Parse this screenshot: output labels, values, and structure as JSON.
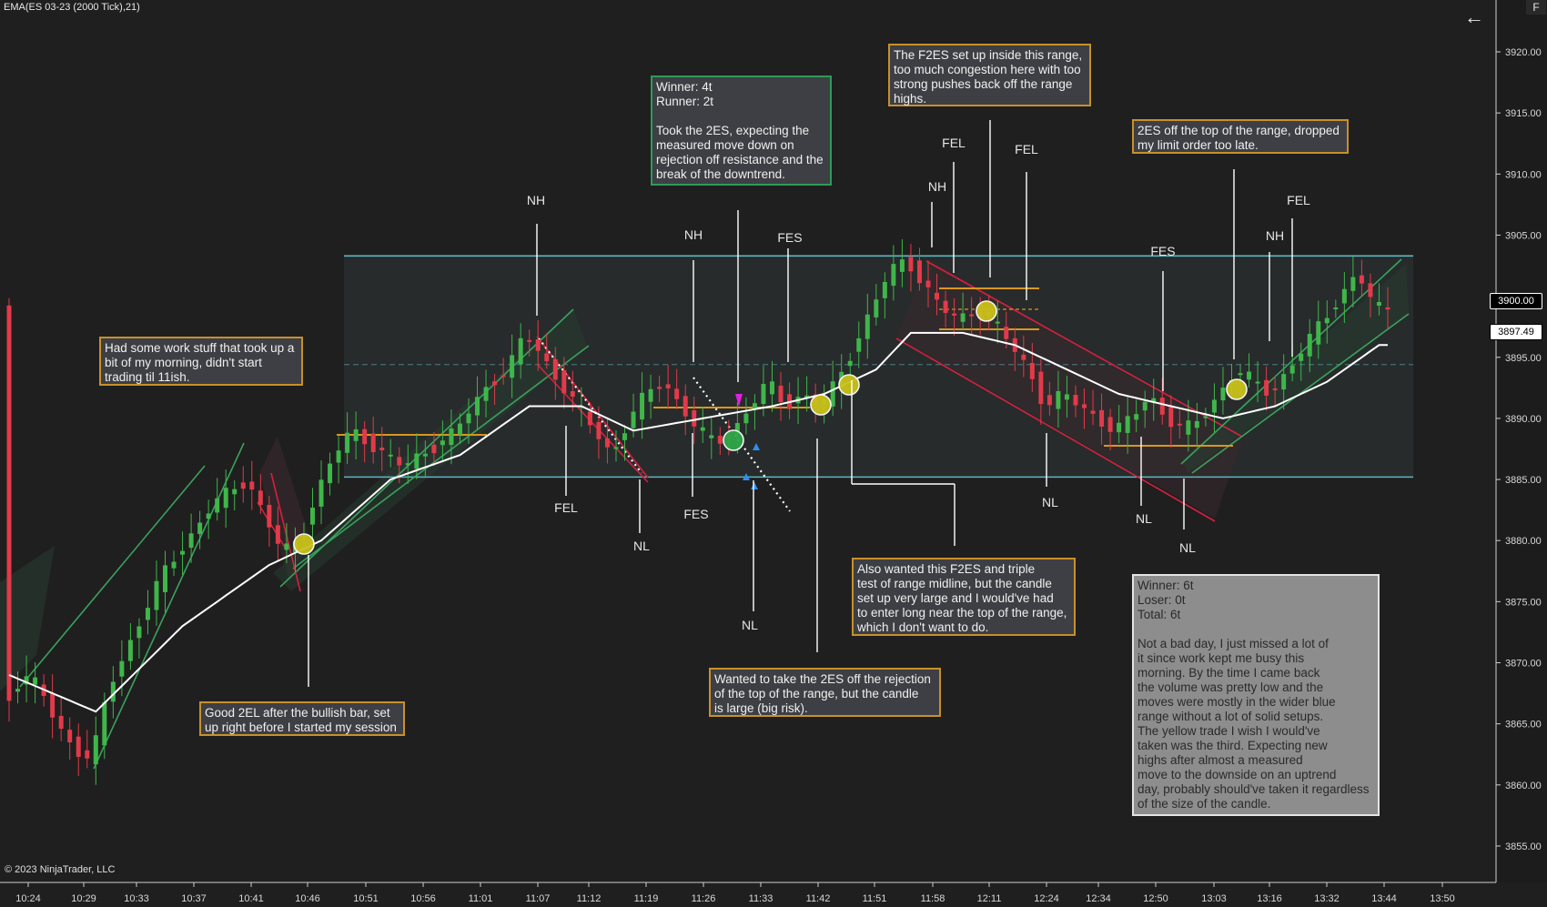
{
  "indicator_title": "EMA(ES 03-23 (2000 Tick),21)",
  "copyright": "© 2023 NinjaTrader, LLC",
  "corner_button": "F",
  "icons": {
    "back": "back-arrow-icon"
  },
  "price_badges": {
    "primary": {
      "label": "3900.00",
      "value": 3900.0,
      "bg": "#000000",
      "fg": "#ffffff",
      "border": "#ffffff"
    },
    "last": {
      "label": "3897.49",
      "value": 3897.49,
      "bg": "#ffffff",
      "fg": "#000000",
      "border": "#000000"
    }
  },
  "colors": {
    "background": "#1f1f1f",
    "up_candle": "#3fb64a",
    "down_candle": "#e23a4a",
    "ema": "#ffffff",
    "range_line": "#5fb6c4",
    "green_channel": "#3aa35c",
    "red_channel": "#d6203f",
    "orange_level": "#d9971f"
  },
  "chart_data": {
    "type": "candlestick",
    "series": [
      {
        "name": "EMA(21)",
        "type": "line"
      }
    ],
    "x_ticks": [
      "10:24",
      "10:29",
      "10:33",
      "10:37",
      "10:41",
      "10:46",
      "10:51",
      "10:56",
      "11:01",
      "11:07",
      "11:12",
      "11:19",
      "11:26",
      "11:33",
      "11:42",
      "11:51",
      "11:58",
      "12:11",
      "12:24",
      "12:34",
      "12:50",
      "13:03",
      "13:16",
      "13:32",
      "13:44",
      "13:50"
    ],
    "y_ticks": [
      "3920.00",
      "3915.00",
      "3910.00",
      "3905.00",
      "3900.00",
      "3895.00",
      "3890.00",
      "3885.00",
      "3880.00",
      "3875.00",
      "3870.00",
      "3865.00",
      "3860.00",
      "3855.00"
    ],
    "ylim": [
      3853.0,
      3923.5
    ],
    "range": {
      "top": 3903.3,
      "mid": 3894.4,
      "bottom": 3885.2
    },
    "close_path": [
      [
        0,
        3866.5
      ],
      [
        2,
        3869
      ],
      [
        4,
        3868
      ],
      [
        6,
        3865
      ],
      [
        8,
        3863
      ],
      [
        10,
        3862
      ],
      [
        12,
        3868
      ],
      [
        14,
        3871
      ],
      [
        16,
        3874
      ],
      [
        18,
        3877
      ],
      [
        20,
        3879
      ],
      [
        22,
        3881
      ],
      [
        24,
        3883
      ],
      [
        26,
        3884
      ],
      [
        28,
        3885
      ],
      [
        30,
        3882
      ],
      [
        32,
        3879
      ],
      [
        34,
        3880
      ],
      [
        36,
        3884
      ],
      [
        38,
        3887
      ],
      [
        40,
        3889
      ],
      [
        42,
        3888
      ],
      [
        44,
        3887
      ],
      [
        46,
        3886
      ],
      [
        48,
        3887
      ],
      [
        50,
        3888
      ],
      [
        52,
        3889
      ],
      [
        54,
        3891
      ],
      [
        56,
        3893
      ],
      [
        58,
        3894
      ],
      [
        60,
        3897
      ],
      [
        62,
        3895
      ],
      [
        64,
        3893
      ],
      [
        66,
        3891
      ],
      [
        68,
        3889
      ],
      [
        70,
        3887
      ],
      [
        72,
        3890
      ],
      [
        74,
        3892
      ],
      [
        76,
        3893
      ],
      [
        78,
        3891
      ],
      [
        80,
        3889
      ],
      [
        82,
        3888
      ],
      [
        84,
        3889
      ],
      [
        86,
        3891
      ],
      [
        88,
        3893
      ],
      [
        90,
        3891
      ],
      [
        92,
        3892
      ],
      [
        94,
        3891
      ],
      [
        96,
        3893
      ],
      [
        98,
        3896
      ],
      [
        100,
        3899
      ],
      [
        102,
        3902
      ],
      [
        104,
        3903
      ],
      [
        106,
        3901
      ],
      [
        108,
        3899
      ],
      [
        110,
        3898
      ],
      [
        112,
        3899
      ],
      [
        114,
        3898
      ],
      [
        116,
        3896
      ],
      [
        118,
        3894
      ],
      [
        120,
        3891
      ],
      [
        122,
        3892
      ],
      [
        124,
        3891
      ],
      [
        126,
        3890
      ],
      [
        128,
        3889
      ],
      [
        130,
        3890
      ],
      [
        132,
        3892
      ],
      [
        134,
        3890
      ],
      [
        136,
        3889
      ],
      [
        138,
        3890
      ],
      [
        140,
        3892
      ],
      [
        142,
        3894
      ],
      [
        144,
        3893
      ],
      [
        146,
        3892
      ],
      [
        148,
        3894
      ],
      [
        150,
        3896
      ],
      [
        152,
        3898
      ],
      [
        154,
        3900
      ],
      [
        156,
        3902
      ],
      [
        158,
        3899
      ]
    ],
    "ema_path": [
      [
        0,
        3869
      ],
      [
        10,
        3866
      ],
      [
        20,
        3873
      ],
      [
        30,
        3878
      ],
      [
        36,
        3880
      ],
      [
        44,
        3885
      ],
      [
        52,
        3887
      ],
      [
        60,
        3891
      ],
      [
        66,
        3891
      ],
      [
        72,
        3889
      ],
      [
        80,
        3890
      ],
      [
        88,
        3891
      ],
      [
        94,
        3892
      ],
      [
        100,
        3894
      ],
      [
        104,
        3897
      ],
      [
        110,
        3897
      ],
      [
        116,
        3896
      ],
      [
        122,
        3894
      ],
      [
        128,
        3892
      ],
      [
        134,
        3891
      ],
      [
        140,
        3890
      ],
      [
        146,
        3891
      ],
      [
        152,
        3893
      ],
      [
        158,
        3896
      ]
    ],
    "labels": [
      {
        "text": "NH",
        "x": 589,
        "y": 225
      },
      {
        "text": "FEL",
        "x": 622,
        "y": 563
      },
      {
        "text": "NL",
        "x": 705,
        "y": 605
      },
      {
        "text": "NH",
        "x": 762,
        "y": 263
      },
      {
        "text": "FES",
        "x": 765,
        "y": 570
      },
      {
        "text": "NL",
        "x": 824,
        "y": 692
      },
      {
        "text": "FES",
        "x": 868,
        "y": 266
      },
      {
        "text": "NH",
        "x": 1030,
        "y": 210
      },
      {
        "text": "FEL",
        "x": 1048,
        "y": 162
      },
      {
        "text": "FEL",
        "x": 1128,
        "y": 169
      },
      {
        "text": "NL",
        "x": 1154,
        "y": 557
      },
      {
        "text": "NL",
        "x": 1257,
        "y": 575
      },
      {
        "text": "FES",
        "x": 1278,
        "y": 281
      },
      {
        "text": "NL",
        "x": 1305,
        "y": 607
      },
      {
        "text": "NH",
        "x": 1401,
        "y": 264
      },
      {
        "text": "FEL",
        "x": 1427,
        "y": 225
      }
    ]
  },
  "notes": {
    "morning": "Had some work stuff that took up a\nbit of my morning, didn't start\ntrading til 11ish.",
    "good2el": "Good 2EL after the bullish bar, set\nup right before I started my session",
    "winner": "Winner: 4t\nRunner: 2t\n\nTook the 2ES, expecting the\nmeasured move down on\nrejection off resistance and the\nbreak of the downtrend.",
    "wanted2es": "Wanted to take the 2ES off the rejection\nof the top of the range, but the candle\nis large (big risk).",
    "f2es": "The F2ES set up inside this range,\ntoo much congestion here with too\nstrong pushes back off the range\nhighs.",
    "alsowanted": "Also wanted this F2ES and triple\ntest of range midline, but the candle\nset up very large and I would've had\nto enter long near the top of the range,\nwhich I don't want to do.",
    "offtop": "2ES off the top of the range, dropped\nmy limit order too late.",
    "summary": "Winner: 6t\nLoser: 0t\nTotal: 6t\n\nNot a bad day, I just missed a lot of\nit since work kept me busy this\nmorning. By the time I came back\nthe volume was pretty low and the\nmoves were mostly in the wider blue\nrange without a lot of solid setups.\nThe yellow trade I wish I would've\ntaken was the third. Expecting new\nhighs after almost a measured\nmove to the downside on an uptrend\nday, probably should've taken it regardless\nof the size of the candle."
  }
}
